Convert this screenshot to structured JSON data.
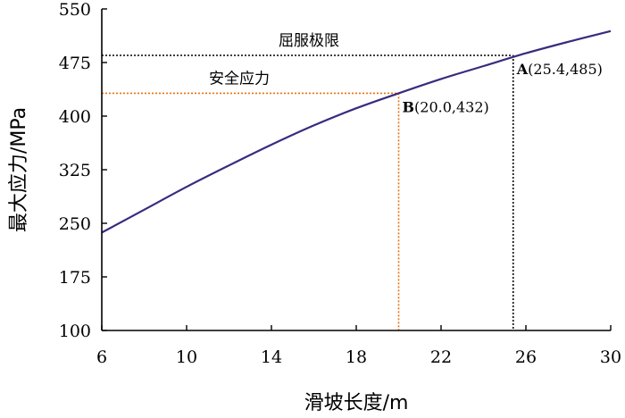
{
  "chart_data": {
    "type": "line",
    "xlabel": "滑坡长度/m",
    "ylabel": "最大应力/MPa",
    "xlim": [
      6,
      30
    ],
    "ylim": [
      100,
      550
    ],
    "xticks": [
      6,
      10,
      14,
      18,
      22,
      26,
      30
    ],
    "yticks": [
      100,
      175,
      250,
      325,
      400,
      475,
      550
    ],
    "grid": false,
    "series": [
      {
        "color": "#3b2a7e",
        "x": [
          6,
          8,
          10,
          12,
          14,
          16,
          18,
          20,
          22,
          24,
          26,
          28,
          30
        ],
        "y": [
          237,
          269,
          301,
          331,
          360,
          387,
          411,
          432,
          452,
          470,
          488,
          504,
          519
        ]
      }
    ],
    "reference_lines": [
      {
        "label": "屈服极限",
        "y": 485,
        "x_end": 25.4,
        "color": "#000000"
      },
      {
        "label": "安全应力",
        "y": 432,
        "x_end": 20.0,
        "color": "#e8720c"
      }
    ],
    "annotations": [
      {
        "letter": "A",
        "text": "(25.4,485)",
        "x": 25.4,
        "y": 485
      },
      {
        "letter": "B",
        "text": "(20.0,432)",
        "x": 20.0,
        "y": 432
      }
    ]
  }
}
